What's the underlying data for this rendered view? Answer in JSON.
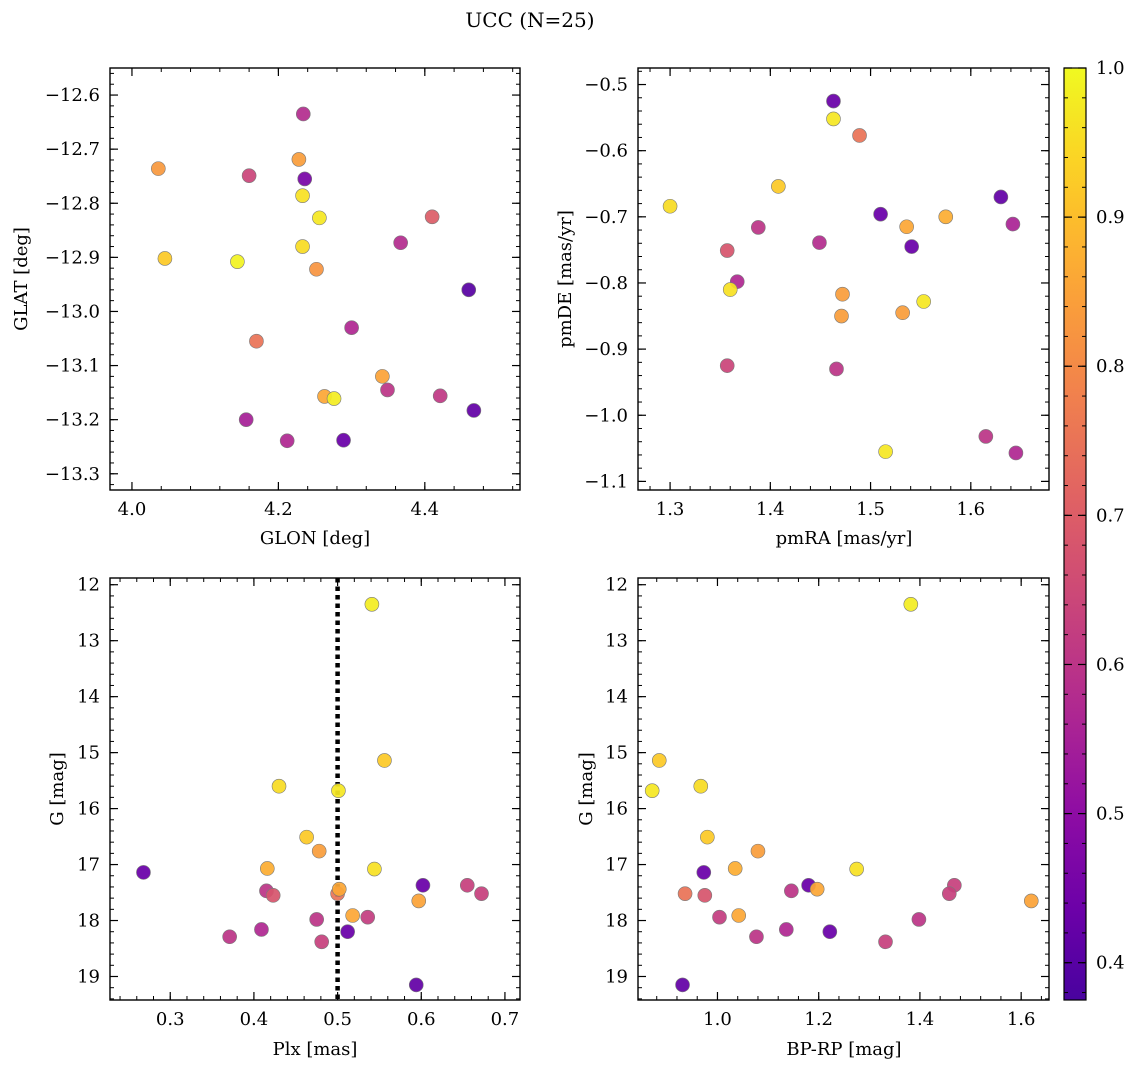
{
  "figure": {
    "title": "UCC (N=25)"
  },
  "colorbar": {
    "ticks": [
      0.4,
      0.5,
      0.6,
      0.7,
      0.8,
      0.9,
      1.0
    ],
    "tick_labels": [
      "0.4",
      "0.5",
      "0.6",
      "0.7",
      "0.8",
      "0.9",
      "1.0"
    ],
    "range": [
      0.375,
      1.0
    ],
    "colormap": "plasma"
  },
  "chart_data": [
    {
      "type": "scatter",
      "panel": "top-left",
      "xlabel": "GLON [deg]",
      "ylabel": "GLAT [deg]",
      "xlim": [
        3.97,
        4.53
      ],
      "ylim": [
        -13.33,
        -12.55
      ],
      "y_inverted": false,
      "xticks": [
        4.0,
        4.2,
        4.4
      ],
      "xtick_labels": [
        "4.0",
        "4.2",
        "4.4"
      ],
      "yticks": [
        -12.6,
        -12.7,
        -12.8,
        -12.9,
        -13.0,
        -13.1,
        -13.2,
        -13.3
      ],
      "ytick_labels": [
        "−12.6",
        "−12.7",
        "−12.8",
        "−12.9",
        "−13.0",
        "−13.1",
        "−13.2",
        "−13.3"
      ],
      "points": [
        {
          "x": 4.234,
          "y": -12.635,
          "c": 0.58
        },
        {
          "x": 4.036,
          "y": -12.736,
          "c": 0.83
        },
        {
          "x": 4.228,
          "y": -12.719,
          "c": 0.84
        },
        {
          "x": 4.16,
          "y": -12.749,
          "c": 0.64
        },
        {
          "x": 4.236,
          "y": -12.755,
          "c": 0.46
        },
        {
          "x": 4.233,
          "y": -12.786,
          "c": 0.96
        },
        {
          "x": 4.256,
          "y": -12.827,
          "c": 0.97
        },
        {
          "x": 4.41,
          "y": -12.825,
          "c": 0.7
        },
        {
          "x": 4.233,
          "y": -12.88,
          "c": 0.95
        },
        {
          "x": 4.367,
          "y": -12.873,
          "c": 0.58
        },
        {
          "x": 4.045,
          "y": -12.902,
          "c": 0.92
        },
        {
          "x": 4.144,
          "y": -12.908,
          "c": 0.99
        },
        {
          "x": 4.252,
          "y": -12.922,
          "c": 0.82
        },
        {
          "x": 4.46,
          "y": -12.96,
          "c": 0.4
        },
        {
          "x": 4.3,
          "y": -13.03,
          "c": 0.57
        },
        {
          "x": 4.17,
          "y": -13.055,
          "c": 0.75
        },
        {
          "x": 4.342,
          "y": -13.12,
          "c": 0.85
        },
        {
          "x": 4.349,
          "y": -13.145,
          "c": 0.6
        },
        {
          "x": 4.263,
          "y": -13.157,
          "c": 0.86
        },
        {
          "x": 4.276,
          "y": -13.161,
          "c": 0.98
        },
        {
          "x": 4.421,
          "y": -13.156,
          "c": 0.61
        },
        {
          "x": 4.467,
          "y": -13.183,
          "c": 0.42
        },
        {
          "x": 4.156,
          "y": -13.2,
          "c": 0.55
        },
        {
          "x": 4.212,
          "y": -13.239,
          "c": 0.57
        },
        {
          "x": 4.289,
          "y": -13.238,
          "c": 0.43
        }
      ]
    },
    {
      "type": "scatter",
      "panel": "top-right",
      "xlabel": "pmRA [mas/yr]",
      "ylabel": "pmDE [mas/yr]",
      "xlim": [
        1.268,
        1.678
      ],
      "ylim": [
        -1.113,
        -0.475
      ],
      "y_inverted": false,
      "xticks": [
        1.3,
        1.4,
        1.5,
        1.6
      ],
      "xtick_labels": [
        "1.3",
        "1.4",
        "1.5",
        "1.6"
      ],
      "yticks": [
        -0.5,
        -0.6,
        -0.7,
        -0.8,
        -0.9,
        -1.0,
        -1.1
      ],
      "ytick_labels": [
        "−0.5",
        "−0.6",
        "−0.7",
        "−0.8",
        "−0.9",
        "−1.0",
        "−1.1"
      ],
      "points": [
        {
          "x": 1.463,
          "y": -0.525,
          "c": 0.43
        },
        {
          "x": 1.463,
          "y": -0.552,
          "c": 0.97
        },
        {
          "x": 1.489,
          "y": -0.577,
          "c": 0.75
        },
        {
          "x": 1.408,
          "y": -0.654,
          "c": 0.92
        },
        {
          "x": 1.63,
          "y": -0.67,
          "c": 0.42
        },
        {
          "x": 1.3,
          "y": -0.684,
          "c": 0.95
        },
        {
          "x": 1.51,
          "y": -0.696,
          "c": 0.43
        },
        {
          "x": 1.575,
          "y": -0.7,
          "c": 0.87
        },
        {
          "x": 1.536,
          "y": -0.715,
          "c": 0.86
        },
        {
          "x": 1.642,
          "y": -0.711,
          "c": 0.56
        },
        {
          "x": 1.388,
          "y": -0.716,
          "c": 0.6
        },
        {
          "x": 1.449,
          "y": -0.739,
          "c": 0.58
        },
        {
          "x": 1.541,
          "y": -0.745,
          "c": 0.43
        },
        {
          "x": 1.357,
          "y": -0.751,
          "c": 0.68
        },
        {
          "x": 1.367,
          "y": -0.798,
          "c": 0.57
        },
        {
          "x": 1.36,
          "y": -0.81,
          "c": 0.96
        },
        {
          "x": 1.472,
          "y": -0.817,
          "c": 0.84
        },
        {
          "x": 1.553,
          "y": -0.828,
          "c": 0.97
        },
        {
          "x": 1.532,
          "y": -0.845,
          "c": 0.84
        },
        {
          "x": 1.471,
          "y": -0.85,
          "c": 0.84
        },
        {
          "x": 1.357,
          "y": -0.925,
          "c": 0.64
        },
        {
          "x": 1.466,
          "y": -0.93,
          "c": 0.6
        },
        {
          "x": 1.615,
          "y": -1.032,
          "c": 0.6
        },
        {
          "x": 1.645,
          "y": -1.057,
          "c": 0.57
        },
        {
          "x": 1.515,
          "y": -1.055,
          "c": 0.97
        }
      ]
    },
    {
      "type": "scatter",
      "panel": "bottom-left",
      "xlabel": "Plx [mas]",
      "ylabel": "G [mag]",
      "xlim": [
        0.228,
        0.718
      ],
      "ylim": [
        11.88,
        19.42
      ],
      "y_inverted": true,
      "xticks": [
        0.3,
        0.4,
        0.5,
        0.6,
        0.7
      ],
      "xtick_labels": [
        "0.3",
        "0.4",
        "0.5",
        "0.6",
        "0.7"
      ],
      "yticks": [
        12,
        13,
        14,
        15,
        16,
        17,
        18,
        19
      ],
      "ytick_labels": [
        "12",
        "13",
        "14",
        "15",
        "16",
        "17",
        "18",
        "19"
      ],
      "vline": {
        "x": 0.5,
        "style": "dotted",
        "color": "#000000"
      },
      "points": [
        {
          "x": 0.541,
          "y": 12.35,
          "c": 0.98
        },
        {
          "x": 0.556,
          "y": 15.14,
          "c": 0.92
        },
        {
          "x": 0.43,
          "y": 15.6,
          "c": 0.95
        },
        {
          "x": 0.501,
          "y": 15.68,
          "c": 0.97
        },
        {
          "x": 0.463,
          "y": 16.51,
          "c": 0.92
        },
        {
          "x": 0.478,
          "y": 16.76,
          "c": 0.84
        },
        {
          "x": 0.268,
          "y": 17.14,
          "c": 0.43
        },
        {
          "x": 0.416,
          "y": 17.07,
          "c": 0.87
        },
        {
          "x": 0.544,
          "y": 17.08,
          "c": 0.96
        },
        {
          "x": 0.415,
          "y": 17.47,
          "c": 0.6
        },
        {
          "x": 0.423,
          "y": 17.55,
          "c": 0.68
        },
        {
          "x": 0.5,
          "y": 17.52,
          "c": 0.75
        },
        {
          "x": 0.502,
          "y": 17.44,
          "c": 0.86
        },
        {
          "x": 0.602,
          "y": 17.37,
          "c": 0.43
        },
        {
          "x": 0.655,
          "y": 17.37,
          "c": 0.63
        },
        {
          "x": 0.672,
          "y": 17.52,
          "c": 0.63
        },
        {
          "x": 0.597,
          "y": 17.65,
          "c": 0.85
        },
        {
          "x": 0.518,
          "y": 17.91,
          "c": 0.86
        },
        {
          "x": 0.475,
          "y": 17.98,
          "c": 0.6
        },
        {
          "x": 0.536,
          "y": 17.94,
          "c": 0.62
        },
        {
          "x": 0.409,
          "y": 18.16,
          "c": 0.57
        },
        {
          "x": 0.371,
          "y": 18.29,
          "c": 0.6
        },
        {
          "x": 0.481,
          "y": 18.38,
          "c": 0.63
        },
        {
          "x": 0.512,
          "y": 18.2,
          "c": 0.43
        },
        {
          "x": 0.594,
          "y": 19.15,
          "c": 0.42
        }
      ]
    },
    {
      "type": "scatter",
      "panel": "bottom-right",
      "xlabel": "BP-RP [mag]",
      "ylabel": "G [mag]",
      "xlim": [
        0.843,
        1.655
      ],
      "ylim": [
        11.88,
        19.42
      ],
      "y_inverted": true,
      "xticks": [
        1.0,
        1.2,
        1.4,
        1.6
      ],
      "xtick_labels": [
        "1.0",
        "1.2",
        "1.4",
        "1.6"
      ],
      "yticks": [
        12,
        13,
        14,
        15,
        16,
        17,
        18,
        19
      ],
      "ytick_labels": [
        "12",
        "13",
        "14",
        "15",
        "16",
        "17",
        "18",
        "19"
      ],
      "points": [
        {
          "x": 1.382,
          "y": 12.35,
          "c": 0.98
        },
        {
          "x": 0.885,
          "y": 15.14,
          "c": 0.92
        },
        {
          "x": 0.967,
          "y": 15.6,
          "c": 0.95
        },
        {
          "x": 0.871,
          "y": 15.68,
          "c": 0.97
        },
        {
          "x": 0.98,
          "y": 16.51,
          "c": 0.92
        },
        {
          "x": 1.08,
          "y": 16.76,
          "c": 0.84
        },
        {
          "x": 0.973,
          "y": 17.14,
          "c": 0.43
        },
        {
          "x": 1.035,
          "y": 17.07,
          "c": 0.87
        },
        {
          "x": 1.275,
          "y": 17.08,
          "c": 0.96
        },
        {
          "x": 1.18,
          "y": 17.37,
          "c": 0.43
        },
        {
          "x": 1.146,
          "y": 17.47,
          "c": 0.6
        },
        {
          "x": 1.197,
          "y": 17.44,
          "c": 0.86
        },
        {
          "x": 1.468,
          "y": 17.37,
          "c": 0.63
        },
        {
          "x": 1.458,
          "y": 17.52,
          "c": 0.63
        },
        {
          "x": 0.936,
          "y": 17.52,
          "c": 0.75
        },
        {
          "x": 0.975,
          "y": 17.55,
          "c": 0.68
        },
        {
          "x": 1.62,
          "y": 17.65,
          "c": 0.85
        },
        {
          "x": 1.004,
          "y": 17.94,
          "c": 0.62
        },
        {
          "x": 1.042,
          "y": 17.91,
          "c": 0.86
        },
        {
          "x": 1.398,
          "y": 17.98,
          "c": 0.6
        },
        {
          "x": 1.136,
          "y": 18.16,
          "c": 0.57
        },
        {
          "x": 1.222,
          "y": 18.2,
          "c": 0.43
        },
        {
          "x": 1.077,
          "y": 18.29,
          "c": 0.6
        },
        {
          "x": 1.332,
          "y": 18.38,
          "c": 0.63
        },
        {
          "x": 0.931,
          "y": 19.15,
          "c": 0.42
        }
      ]
    }
  ]
}
